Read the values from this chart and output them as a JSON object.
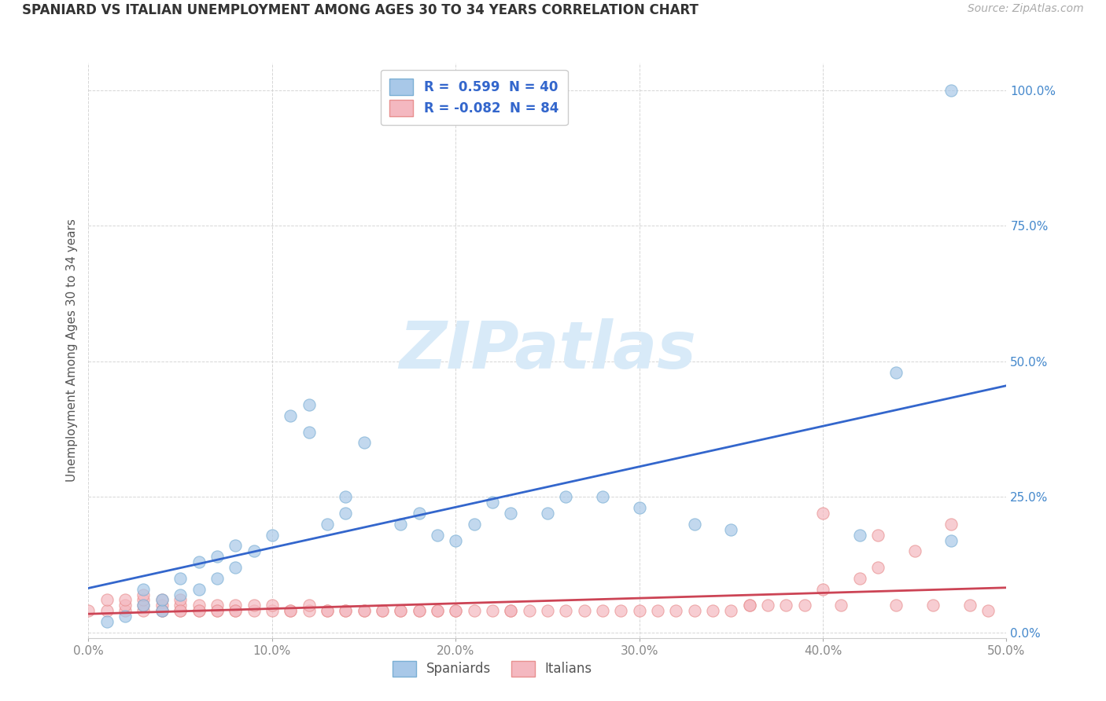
{
  "title": "SPANIARD VS ITALIAN UNEMPLOYMENT AMONG AGES 30 TO 34 YEARS CORRELATION CHART",
  "source": "Source: ZipAtlas.com",
  "ylabel": "Unemployment Among Ages 30 to 34 years",
  "xlim": [
    0.0,
    0.5
  ],
  "ylim": [
    -0.01,
    1.05
  ],
  "spaniards_r": 0.599,
  "spaniards_n": 40,
  "italians_r": -0.082,
  "italians_n": 84,
  "blue_scatter_color": "#a8c8e8",
  "blue_scatter_edge": "#7bafd4",
  "pink_scatter_color": "#f4b8c0",
  "pink_scatter_edge": "#e89090",
  "blue_line_color": "#3366cc",
  "pink_line_color": "#cc4455",
  "watermark_color": "#d8eaf8",
  "ytick_color": "#4488cc",
  "xtick_color": "#888888",
  "grid_color": "#cccccc",
  "title_color": "#333333",
  "source_color": "#aaaaaa",
  "spaniards_x": [
    0.01,
    0.02,
    0.03,
    0.03,
    0.04,
    0.04,
    0.05,
    0.05,
    0.06,
    0.06,
    0.07,
    0.07,
    0.08,
    0.08,
    0.09,
    0.1,
    0.11,
    0.12,
    0.12,
    0.13,
    0.14,
    0.14,
    0.15,
    0.17,
    0.18,
    0.19,
    0.2,
    0.21,
    0.22,
    0.23,
    0.25,
    0.26,
    0.28,
    0.3,
    0.33,
    0.35,
    0.42,
    0.44,
    0.47,
    0.47
  ],
  "spaniards_y": [
    0.02,
    0.03,
    0.05,
    0.08,
    0.04,
    0.06,
    0.07,
    0.1,
    0.08,
    0.13,
    0.1,
    0.14,
    0.12,
    0.16,
    0.15,
    0.18,
    0.4,
    0.42,
    0.37,
    0.2,
    0.22,
    0.25,
    0.35,
    0.2,
    0.22,
    0.18,
    0.17,
    0.2,
    0.24,
    0.22,
    0.22,
    0.25,
    0.25,
    0.23,
    0.2,
    0.19,
    0.18,
    0.48,
    0.17,
    1.0
  ],
  "italians_x": [
    0.0,
    0.01,
    0.01,
    0.02,
    0.02,
    0.02,
    0.03,
    0.03,
    0.03,
    0.03,
    0.04,
    0.04,
    0.04,
    0.04,
    0.05,
    0.05,
    0.05,
    0.05,
    0.06,
    0.06,
    0.06,
    0.07,
    0.07,
    0.07,
    0.08,
    0.08,
    0.08,
    0.09,
    0.09,
    0.1,
    0.1,
    0.11,
    0.11,
    0.12,
    0.12,
    0.13,
    0.13,
    0.14,
    0.14,
    0.15,
    0.15,
    0.16,
    0.16,
    0.17,
    0.17,
    0.18,
    0.18,
    0.19,
    0.19,
    0.2,
    0.2,
    0.21,
    0.22,
    0.23,
    0.23,
    0.24,
    0.25,
    0.26,
    0.27,
    0.28,
    0.29,
    0.3,
    0.31,
    0.32,
    0.33,
    0.34,
    0.35,
    0.36,
    0.37,
    0.38,
    0.39,
    0.4,
    0.41,
    0.42,
    0.43,
    0.44,
    0.45,
    0.46,
    0.47,
    0.48,
    0.4,
    0.36,
    0.43,
    0.49
  ],
  "italians_y": [
    0.04,
    0.04,
    0.06,
    0.04,
    0.05,
    0.06,
    0.04,
    0.05,
    0.06,
    0.07,
    0.04,
    0.05,
    0.06,
    0.04,
    0.04,
    0.05,
    0.06,
    0.04,
    0.04,
    0.05,
    0.04,
    0.04,
    0.05,
    0.04,
    0.04,
    0.05,
    0.04,
    0.04,
    0.05,
    0.04,
    0.05,
    0.04,
    0.04,
    0.04,
    0.05,
    0.04,
    0.04,
    0.04,
    0.04,
    0.04,
    0.04,
    0.04,
    0.04,
    0.04,
    0.04,
    0.04,
    0.04,
    0.04,
    0.04,
    0.04,
    0.04,
    0.04,
    0.04,
    0.04,
    0.04,
    0.04,
    0.04,
    0.04,
    0.04,
    0.04,
    0.04,
    0.04,
    0.04,
    0.04,
    0.04,
    0.04,
    0.04,
    0.05,
    0.05,
    0.05,
    0.05,
    0.08,
    0.05,
    0.1,
    0.12,
    0.05,
    0.15,
    0.05,
    0.2,
    0.05,
    0.22,
    0.05,
    0.18,
    0.04
  ]
}
